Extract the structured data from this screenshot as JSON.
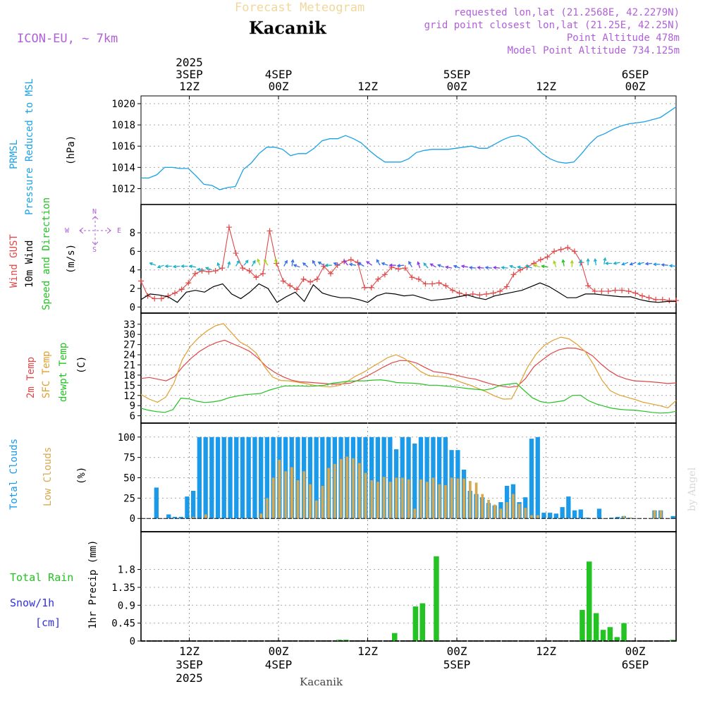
{
  "header": {
    "subtitle": "Forecast Meteogram",
    "title": "Kacanik",
    "model": "ICON-EU, ~ 7km",
    "info_lines": [
      "requested lon,lat (21.2568E, 42.2279N)",
      "grid point closest lon,lat (21.25E, 42.25N)",
      "Point Altitude 478m",
      "Model Point Altitude 734.125m"
    ],
    "bottom_label": "Kacanik",
    "credit": "by Angel"
  },
  "colors": {
    "pressure": "#1aa1e6",
    "gust": "#e04848",
    "wind": "#000000",
    "wind_arrows": "#1ab0c8",
    "temp2m": "#e04848",
    "sfc": "#e0a030",
    "dew": "#22c322",
    "total_clouds": "#1a9ae8",
    "low_clouds": "#d8a850",
    "rain": "#22c322",
    "snow": "#3030e0",
    "purple": "#b060d8"
  },
  "time_axis": {
    "hours": 72,
    "top_ticks": [
      {
        "hour": 6.5,
        "lines": [
          "2025",
          "3SEP",
          "12Z"
        ]
      },
      {
        "hour": 18.5,
        "lines": [
          "4SEP",
          "00Z"
        ]
      },
      {
        "hour": 30.5,
        "lines": [
          "12Z"
        ]
      },
      {
        "hour": 42.5,
        "lines": [
          "5SEP",
          "00Z"
        ]
      },
      {
        "hour": 54.5,
        "lines": [
          "12Z"
        ]
      },
      {
        "hour": 66.5,
        "lines": [
          "6SEP",
          "00Z"
        ]
      }
    ],
    "bottom_ticks": [
      {
        "hour": 6.5,
        "lines": [
          "12Z",
          "3SEP",
          "2025"
        ]
      },
      {
        "hour": 18.5,
        "lines": [
          "00Z",
          "4SEP"
        ]
      },
      {
        "hour": 30.5,
        "lines": [
          "12Z"
        ]
      },
      {
        "hour": 42.5,
        "lines": [
          "00Z",
          "5SEP"
        ]
      },
      {
        "hour": 54.5,
        "lines": [
          "12Z"
        ]
      },
      {
        "hour": 66.5,
        "lines": [
          "00Z",
          "6SEP"
        ]
      }
    ]
  },
  "panel_labels": {
    "pressure": {
      "name1": "PRMSL",
      "name2": "Pressure Reduced to MSL",
      "unit": "(hPa)"
    },
    "wind": {
      "gust": "Wind GUST",
      "wind10": "10m Wind",
      "speeddir": "Speed and Direction",
      "unit": "(m/s)",
      "compass": {
        "n": "N",
        "s": "S",
        "w": "W",
        "e": "E"
      }
    },
    "temp": {
      "t2m": "2m Temp",
      "sfc": "SFC Temp",
      "dew": "dewpt Temp",
      "unit": "(C)"
    },
    "cloud": {
      "total": "Total Clouds",
      "low": "Low Clouds",
      "unit": "(%)"
    },
    "precip": {
      "rain": "Total  Rain",
      "snow": "Snow/1h",
      "cm": "[cm]",
      "axis": "1hr Precip (mm)"
    }
  },
  "chart_data": [
    {
      "type": "line",
      "title": "PRMSL Pressure Reduced to MSL",
      "ylabel": "(hPa)",
      "ylim": [
        1011.3,
        1020.4
      ],
      "yticks": [
        "1012",
        "1014",
        "1016",
        "1018",
        "1020"
      ],
      "series": [
        {
          "name": "PRMSL",
          "values": [
            1013.0,
            1013.0,
            1013.3,
            1014.0,
            1014.0,
            1013.9,
            1013.9,
            1013.2,
            1012.4,
            1012.3,
            1011.9,
            1012.1,
            1012.2,
            1013.8,
            1014.4,
            1015.3,
            1015.9,
            1015.9,
            1015.7,
            1015.1,
            1015.3,
            1015.3,
            1015.8,
            1016.5,
            1016.7,
            1016.7,
            1017.0,
            1016.7,
            1016.3,
            1015.6,
            1015.0,
            1014.5,
            1014.5,
            1014.5,
            1014.8,
            1015.4,
            1015.6,
            1015.7,
            1015.7,
            1015.7,
            1015.8,
            1015.9,
            1016.0,
            1015.8,
            1015.8,
            1016.2,
            1016.6,
            1016.9,
            1017.0,
            1016.7,
            1016.0,
            1015.3,
            1014.8,
            1014.5,
            1014.4,
            1014.5,
            1015.3,
            1016.2,
            1016.9,
            1017.2,
            1017.6,
            1017.9,
            1018.1,
            1018.2,
            1018.3,
            1018.5,
            1018.7,
            1019.2,
            1019.7
          ]
        }
      ]
    },
    {
      "type": "line",
      "title": "Wind GUST / 10m Wind Speed and Direction",
      "ylabel": "(m/s)",
      "ylim": [
        -0.2,
        9.3
      ],
      "yticks": [
        "0",
        "2",
        "4",
        "6",
        "8"
      ],
      "series": [
        {
          "name": "Wind GUST",
          "values": [
            2.8,
            1.2,
            0.9,
            0.9,
            1.2,
            1.5,
            1.9,
            2.6,
            3.6,
            3.9,
            3.8,
            3.9,
            4.2,
            8.6,
            5.8,
            4.2,
            3.9,
            3.2,
            3.6,
            8.2,
            4.7,
            2.8,
            2.3,
            1.9,
            3.0,
            2.7,
            3.0,
            4.4,
            3.6,
            4.5,
            4.9,
            5.1,
            4.8,
            2.1,
            2.1,
            3.0,
            3.5,
            4.3,
            4.1,
            4.2,
            3.2,
            3.0,
            2.5,
            2.5,
            2.6,
            2.3,
            1.8,
            1.5,
            1.3,
            1.4,
            1.3,
            1.4,
            1.5,
            1.7,
            2.2,
            3.5,
            4.0,
            4.3,
            4.7,
            5.1,
            5.4,
            6.0,
            6.2,
            6.4,
            6.0,
            4.8,
            2.3,
            1.7,
            1.7,
            1.7,
            1.8,
            1.8,
            1.7,
            1.5,
            1.2,
            1.0,
            0.8,
            0.8,
            0.7,
            0.7
          ]
        },
        {
          "name": "10m Wind",
          "values": [
            0.8,
            1.4,
            1.3,
            1.1,
            0.5,
            1.6,
            1.8,
            1.6,
            2.2,
            2.5,
            1.4,
            0.9,
            1.6,
            2.5,
            2.0,
            0.5,
            1.1,
            1.6,
            0.6,
            2.4,
            1.5,
            1.2,
            1.0,
            1.0,
            0.8,
            0.5,
            1.2,
            1.5,
            1.4,
            1.2,
            1.3,
            1.0,
            0.7,
            0.8,
            0.9,
            1.1,
            1.3,
            1.0,
            0.8,
            1.2,
            1.4,
            1.6,
            1.8,
            2.2,
            2.6,
            2.2,
            1.6,
            1.0,
            1.0,
            1.4,
            1.4,
            1.3,
            1.2,
            1.1,
            1.1,
            0.8,
            0.6,
            0.5,
            0.6,
            0.6
          ]
        },
        {
          "name": "Wind arrow level",
          "values": [
            4.5,
            4.5,
            4.4,
            4.4,
            4.4,
            4.3,
            4.0,
            4.0,
            4.1,
            4.2,
            4.4,
            4.5,
            4.4,
            4.5,
            4.5,
            4.5,
            4.4,
            4.4,
            4.3,
            4.3,
            4.4,
            4.5,
            4.5,
            4.5,
            4.5,
            4.5,
            4.4,
            4.5,
            4.5,
            4.5,
            4.5,
            4.5,
            4.3,
            4.2,
            4.2,
            4.3,
            4.3,
            4.2,
            4.2,
            4.3,
            4.2,
            4.2,
            4.2,
            4.2,
            4.2,
            4.2,
            4.2,
            4.2,
            4.3,
            4.3,
            4.3,
            4.4,
            4.3,
            4.4,
            4.5,
            4.5,
            4.6,
            4.7,
            4.8,
            4.8,
            4.8,
            4.8,
            4.7,
            4.6,
            4.5,
            4.4
          ]
        }
      ]
    },
    {
      "type": "line",
      "title": "2m Temp / SFC Temp / dewpt Temp",
      "ylabel": "(C)",
      "ylim": [
        5.5,
        34
      ],
      "yticks": [
        "6",
        "9",
        "12",
        "15",
        "18",
        "21",
        "24",
        "27",
        "30",
        "33"
      ],
      "series": [
        {
          "name": "2m Temp",
          "values": [
            17.0,
            17.3,
            16.8,
            16.3,
            17.5,
            20.5,
            23.0,
            25.0,
            26.5,
            27.6,
            28.3,
            27.2,
            26.2,
            25.0,
            23.0,
            20.5,
            18.8,
            17.5,
            16.5,
            16.0,
            15.9,
            15.7,
            15.5,
            15.3,
            15.4,
            15.6,
            16.5,
            17.7,
            19.0,
            20.4,
            21.6,
            22.3,
            22.2,
            21.5,
            20.2,
            19.0,
            18.7,
            18.3,
            17.8,
            17.2,
            16.8,
            16.0,
            15.3,
            14.8,
            14.4,
            14.7,
            17.0,
            20.5,
            22.5,
            24.3,
            25.5,
            26.0,
            25.9,
            25.2,
            23.7,
            21.3,
            19.3,
            17.8,
            16.9,
            16.3,
            16.2,
            16.0,
            15.8,
            15.5,
            15.7
          ]
        },
        {
          "name": "SFC Temp",
          "values": [
            12.3,
            10.9,
            10.0,
            11.5,
            15.6,
            22.5,
            26.5,
            29.0,
            31.0,
            32.5,
            33.2,
            30.5,
            27.8,
            26.5,
            24.5,
            20.5,
            17.4,
            16.4,
            16.3,
            15.9,
            15.5,
            15.0,
            14.7,
            14.5,
            14.9,
            16.0,
            17.6,
            18.8,
            20.3,
            21.7,
            23.2,
            24.0,
            22.9,
            21.0,
            19.0,
            17.8,
            17.6,
            17.4,
            16.8,
            15.8,
            15.0,
            14.0,
            13.0,
            11.8,
            10.9,
            11.0,
            15.5,
            20.5,
            24.2,
            26.8,
            28.2,
            29.2,
            28.7,
            27.0,
            24.8,
            21.0,
            16.5,
            13.4,
            12.2,
            11.5,
            10.8,
            10.0,
            9.5,
            9.0,
            8.3,
            10.5
          ]
        },
        {
          "name": "dewpt Temp",
          "values": [
            8.2,
            7.6,
            7.2,
            7.0,
            7.8,
            11.2,
            11.0,
            10.3,
            9.9,
            10.1,
            10.5,
            11.3,
            11.8,
            12.2,
            12.4,
            12.6,
            13.5,
            14.2,
            14.8,
            14.8,
            14.8,
            14.7,
            14.8,
            15.0,
            15.6,
            15.9,
            16.2,
            16.3,
            16.3,
            16.5,
            16.6,
            16.3,
            15.8,
            15.7,
            15.6,
            15.4,
            15.0,
            15.0,
            14.8,
            14.6,
            14.3,
            14.0,
            13.8,
            13.6,
            14.0,
            15.0,
            15.3,
            15.6,
            13.4,
            11.3,
            10.2,
            9.8,
            10.1,
            10.5,
            12.0,
            12.1,
            10.5,
            9.5,
            8.8,
            8.2,
            7.9,
            7.7,
            7.6,
            7.3,
            7.0,
            6.8,
            6.9,
            7.3
          ]
        }
      ]
    },
    {
      "type": "bar",
      "title": "Total Clouds / Low Clouds",
      "ylabel": "(%)",
      "ylim": [
        -5,
        105
      ],
      "yticks": [
        "0",
        "25",
        "50",
        "75",
        "100"
      ],
      "series": [
        {
          "name": "Total Clouds",
          "values": [
            0,
            0,
            38,
            0,
            5,
            2,
            2,
            27,
            34,
            100,
            100,
            100,
            100,
            100,
            100,
            100,
            100,
            100,
            100,
            100,
            100,
            100,
            100,
            100,
            100,
            100,
            100,
            100,
            100,
            100,
            100,
            100,
            100,
            100,
            100,
            100,
            100,
            100,
            100,
            100,
            100,
            85,
            100,
            100,
            92,
            100,
            100,
            100,
            100,
            100,
            84,
            84,
            60,
            34,
            30,
            26,
            19,
            16,
            20,
            40,
            42,
            20,
            26,
            98,
            100,
            7,
            7,
            6,
            14,
            27,
            10,
            11,
            1,
            0,
            12,
            0,
            1,
            2,
            3,
            1,
            0,
            0,
            0,
            10,
            10,
            0,
            3
          ]
        },
        {
          "name": "Low Clouds",
          "values": [
            0,
            0,
            0,
            0,
            0,
            0,
            0,
            0,
            2,
            0,
            5,
            0,
            0,
            0,
            0,
            0,
            0,
            0,
            0,
            6,
            25,
            50,
            72,
            58,
            63,
            47,
            58,
            42,
            22,
            40,
            62,
            67,
            73,
            76,
            74,
            68,
            56,
            47,
            45,
            51,
            45,
            50,
            50,
            48,
            12,
            48,
            45,
            50,
            42,
            41,
            50,
            49,
            49,
            46,
            44,
            30,
            23,
            17,
            12,
            20,
            30,
            18,
            13,
            4,
            4,
            0,
            0,
            0,
            0,
            0,
            0,
            0,
            0,
            0,
            0,
            0,
            0,
            0,
            3,
            1,
            0,
            0,
            0,
            10,
            10,
            0,
            0
          ]
        }
      ]
    },
    {
      "type": "bar",
      "title": "1hr Precip",
      "ylabel": "1hr Precip (mm)",
      "ylim": [
        0,
        2.2
      ],
      "yticks": [
        "0",
        "0.45",
        "0.9",
        "1.35",
        "1.8"
      ],
      "series": [
        {
          "name": "Total Rain",
          "values": [
            0,
            0,
            0,
            0,
            0,
            0,
            0,
            0,
            0,
            0,
            0,
            0,
            0,
            0,
            0,
            0,
            0,
            0,
            0,
            0,
            0,
            0,
            0,
            0,
            0,
            0,
            0,
            0,
            0.03,
            0.03,
            0,
            0,
            0,
            0,
            0,
            0,
            0.2,
            0,
            0,
            0.87,
            0.95,
            0,
            2.13,
            0,
            0,
            0,
            0,
            0,
            0,
            0,
            0,
            0,
            0,
            0,
            0,
            0,
            0,
            0,
            0,
            0,
            0,
            0,
            0,
            0.78,
            2.0,
            0.7,
            0.28,
            0.35,
            0.1,
            0.45,
            0,
            0,
            0,
            0,
            0,
            0,
            0.03
          ]
        }
      ]
    }
  ]
}
